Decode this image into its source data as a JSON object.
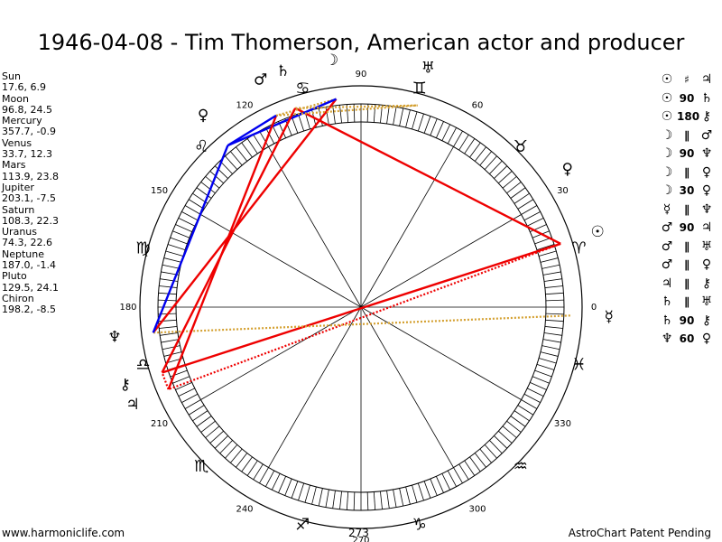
{
  "title": "1946-04-08 - Tim Thomerson, American actor and producer",
  "positions": [
    {
      "name": "Sun",
      "value": "17.6, 6.9"
    },
    {
      "name": "Moon",
      "value": "96.8, 24.5"
    },
    {
      "name": "Mercury",
      "value": "357.7, -0.9"
    },
    {
      "name": "Venus",
      "value": "33.7, 12.3"
    },
    {
      "name": "Mars",
      "value": "113.9, 23.8"
    },
    {
      "name": "Jupiter",
      "value": "203.1, -7.5"
    },
    {
      "name": "Saturn",
      "value": "108.3, 22.3"
    },
    {
      "name": "Uranus",
      "value": "74.3, 22.6"
    },
    {
      "name": "Neptune",
      "value": "187.0, -1.4"
    },
    {
      "name": "Pluto",
      "value": "129.5, 24.1"
    },
    {
      "name": "Chiron",
      "value": "198.2, -8.5"
    }
  ],
  "aspects": [
    {
      "p1": "☉",
      "type": "♯",
      "p2": "♃"
    },
    {
      "p1": "☉",
      "type": "90",
      "p2": "♄"
    },
    {
      "p1": "☉",
      "type": "180",
      "p2": "⚷"
    },
    {
      "p1": "☽",
      "type": "∥",
      "p2": "♂"
    },
    {
      "p1": "☽",
      "type": "90",
      "p2": "♆"
    },
    {
      "p1": "☽",
      "type": "∥",
      "p2": "♀"
    },
    {
      "p1": "☽",
      "type": "30",
      "p2": "♀"
    },
    {
      "p1": "☿",
      "type": "∥",
      "p2": "♆"
    },
    {
      "p1": "♂",
      "type": "90",
      "p2": "♃"
    },
    {
      "p1": "♂",
      "type": "∥",
      "p2": "♅"
    },
    {
      "p1": "♂",
      "type": "∥",
      "p2": "♀"
    },
    {
      "p1": "♃",
      "type": "∥",
      "p2": "⚷"
    },
    {
      "p1": "♄",
      "type": "∥",
      "p2": "♅"
    },
    {
      "p1": "♄",
      "type": "90",
      "p2": "⚷"
    },
    {
      "p1": "♆",
      "type": "60",
      "p2": "♀"
    }
  ],
  "wheel": {
    "degree_labels": [
      "0",
      "30",
      "60",
      "90",
      "120",
      "150",
      "180",
      "210",
      "240",
      "270",
      "300",
      "330"
    ],
    "bottom_label": "273",
    "zodiac": [
      {
        "name": "aries-glyph",
        "glyph": "♈"
      },
      {
        "name": "taurus-glyph",
        "glyph": "♉"
      },
      {
        "name": "gemini-glyph",
        "glyph": "♊"
      },
      {
        "name": "cancer-glyph",
        "glyph": "♋"
      },
      {
        "name": "leo-glyph",
        "glyph": "♌"
      },
      {
        "name": "virgo-glyph",
        "glyph": "♍"
      },
      {
        "name": "libra-glyph",
        "glyph": "♎"
      },
      {
        "name": "scorpio-glyph",
        "glyph": "♏"
      },
      {
        "name": "sagittarius-glyph",
        "glyph": "♐"
      },
      {
        "name": "capricorn-glyph",
        "glyph": "♑"
      },
      {
        "name": "aquarius-glyph",
        "glyph": "♒"
      },
      {
        "name": "pisces-glyph",
        "glyph": "♓"
      }
    ],
    "planets": [
      {
        "name": "sun",
        "glyph": "☉",
        "lon": 17.6
      },
      {
        "name": "moon",
        "glyph": "☽",
        "lon": 96.8
      },
      {
        "name": "mercury",
        "glyph": "☿",
        "lon": 357.7
      },
      {
        "name": "venus",
        "glyph": "♀",
        "lon": 33.7
      },
      {
        "name": "mars",
        "glyph": "♂",
        "lon": 113.9
      },
      {
        "name": "jupiter",
        "glyph": "♃",
        "lon": 203.1
      },
      {
        "name": "saturn",
        "glyph": "♄",
        "lon": 108.3
      },
      {
        "name": "uranus",
        "glyph": "♅",
        "lon": 74.3
      },
      {
        "name": "neptune",
        "glyph": "♆",
        "lon": 187.0
      },
      {
        "name": "pluto",
        "glyph": "♀",
        "lon": 129.5
      },
      {
        "name": "chiron",
        "glyph": "⚷",
        "lon": 198.2
      }
    ],
    "aspect_lines": [
      {
        "a": "sun",
        "b": "jupiter",
        "color": "#ee0000",
        "style": "dotted"
      },
      {
        "a": "sun",
        "b": "saturn",
        "color": "#ee0000",
        "style": "solid"
      },
      {
        "a": "sun",
        "b": "chiron",
        "color": "#ee0000",
        "style": "solid"
      },
      {
        "a": "moon",
        "b": "mars",
        "color": "#d4a030",
        "style": "dotted"
      },
      {
        "a": "moon",
        "b": "neptune",
        "color": "#ee0000",
        "style": "solid"
      },
      {
        "a": "moon",
        "b": "pluto",
        "color": "#0000ee",
        "style": "solid"
      },
      {
        "a": "mercury",
        "b": "neptune",
        "color": "#d4a030",
        "style": "dotted"
      },
      {
        "a": "mars",
        "b": "jupiter",
        "color": "#ee0000",
        "style": "solid"
      },
      {
        "a": "mars",
        "b": "uranus",
        "color": "#d4a030",
        "style": "dotted"
      },
      {
        "a": "mars",
        "b": "pluto",
        "color": "#0000ee",
        "style": "solid"
      },
      {
        "a": "jupiter",
        "b": "chiron",
        "color": "#ee0000",
        "style": "dotted"
      },
      {
        "a": "saturn",
        "b": "uranus",
        "color": "#d4a030",
        "style": "dotted"
      },
      {
        "a": "saturn",
        "b": "chiron",
        "color": "#ee0000",
        "style": "solid"
      },
      {
        "a": "neptune",
        "b": "pluto",
        "color": "#0000ee",
        "style": "solid"
      }
    ]
  },
  "footer": {
    "left": "www.harmoniclife.com",
    "right": "AstroChart Patent Pending"
  }
}
